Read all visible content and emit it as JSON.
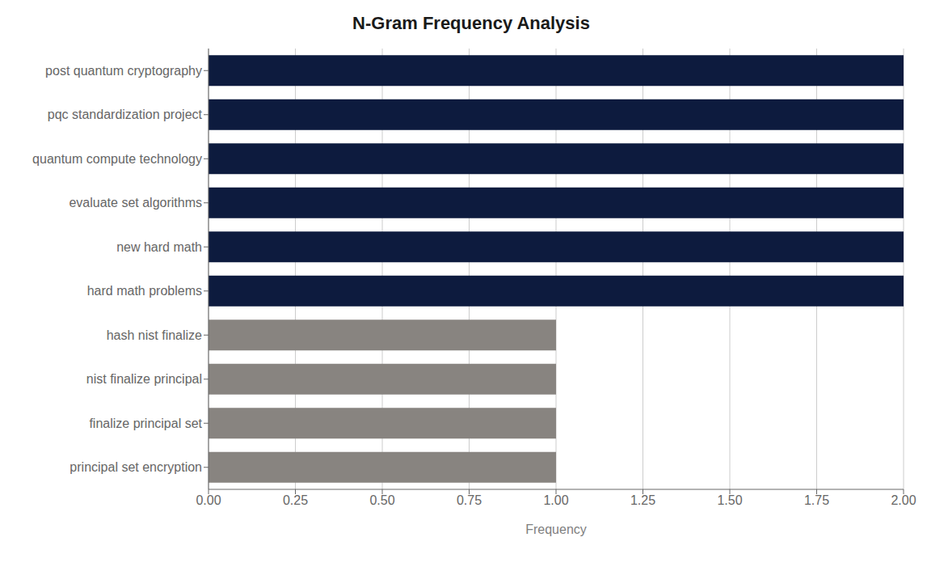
{
  "chart_data": {
    "type": "bar",
    "orientation": "horizontal",
    "title": "N-Gram Frequency Analysis",
    "categories": [
      "principal set encryption",
      "finalize principal set",
      "nist finalize principal",
      "hash nist finalize",
      "hard math problems",
      "new hard math",
      "evaluate set algorithms",
      "quantum compute technology",
      "pqc standardization project",
      "post quantum cryptography"
    ],
    "values": [
      1,
      1,
      1,
      1,
      2,
      2,
      2,
      2,
      2,
      2
    ],
    "colors": [
      "#888480",
      "#888480",
      "#888480",
      "#888480",
      "#0d1b3e",
      "#0d1b3e",
      "#0d1b3e",
      "#0d1b3e",
      "#0d1b3e",
      "#0d1b3e"
    ],
    "xlabel": "Frequency",
    "xlim": [
      0,
      2.0
    ],
    "xticks": [
      {
        "value": 0,
        "label": "0.00"
      },
      0.25,
      {
        "value": 0.5,
        "label": "0.50"
      },
      0.75,
      {
        "value": 1,
        "label": "1.00"
      },
      1.25,
      {
        "value": 1.5,
        "label": "1.50"
      },
      1.75,
      {
        "value": 2,
        "label": "2.00"
      }
    ],
    "grid": true
  }
}
